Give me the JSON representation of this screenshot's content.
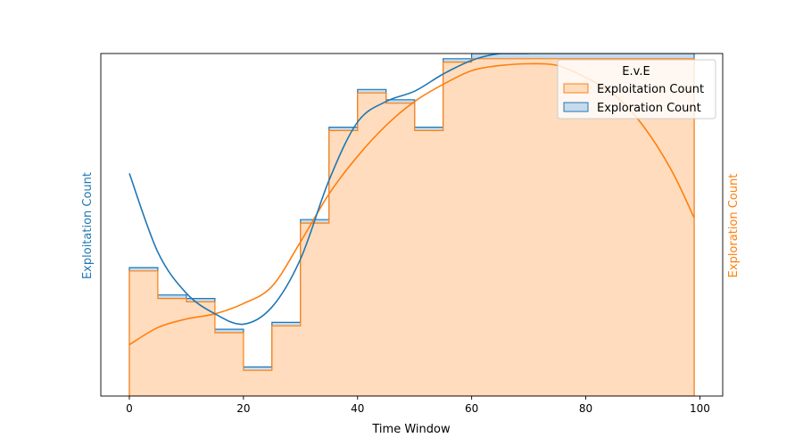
{
  "chart_data": {
    "type": "area",
    "xlabel": "Time Window",
    "ylabel_left": "Exploitation Count",
    "ylabel_right": "Exploration Count",
    "ylabel_left_color": "#1f77b4",
    "ylabel_right_color": "#ff7f0e",
    "xlim": [
      -5,
      104
    ],
    "ylim": [
      0,
      1.0
    ],
    "xticks": [
      0,
      20,
      40,
      60,
      80,
      100
    ],
    "y_ticks_hidden": true,
    "legend": {
      "title": "E.v.E",
      "position": "top-right",
      "entries": [
        "Exploitation Count",
        "Exploration Count"
      ]
    },
    "bin_edges": [
      0,
      5,
      10,
      15,
      20,
      25,
      30,
      35,
      40,
      45,
      50,
      55,
      60,
      65,
      70,
      75,
      80,
      85,
      90,
      95,
      99
    ],
    "series": [
      {
        "name": "Exploration Count",
        "color": "#1f77b4",
        "fill": "#c5dbed",
        "step_values": [
          0.375,
          0.295,
          0.285,
          0.195,
          0.085,
          0.215,
          0.515,
          0.785,
          0.895,
          0.865,
          0.785,
          0.985,
          1.0,
          1.0,
          1.0,
          1.0,
          1.0,
          1.0,
          1.0,
          1.0
        ],
        "kde_x": [
          0,
          5,
          10,
          15,
          20,
          25,
          30,
          35,
          40,
          45,
          50,
          55,
          60,
          65,
          70
        ],
        "kde_y": [
          0.65,
          0.42,
          0.3,
          0.24,
          0.21,
          0.26,
          0.4,
          0.63,
          0.8,
          0.86,
          0.89,
          0.94,
          0.98,
          1.0,
          1.0
        ]
      },
      {
        "name": "Exploitation Count",
        "color": "#ff7f0e",
        "fill": "#ffdcbd",
        "step_values": [
          0.365,
          0.285,
          0.275,
          0.185,
          0.075,
          0.205,
          0.505,
          0.775,
          0.885,
          0.855,
          0.775,
          0.975,
          0.985,
          0.985,
          0.985,
          0.985,
          0.985,
          0.985,
          0.985,
          0.985
        ],
        "kde_x": [
          0,
          5,
          10,
          15,
          20,
          25,
          30,
          35,
          40,
          45,
          50,
          55,
          60,
          65,
          70,
          75,
          80,
          85,
          90,
          95,
          99
        ],
        "kde_y": [
          0.15,
          0.2,
          0.225,
          0.24,
          0.27,
          0.32,
          0.45,
          0.59,
          0.7,
          0.79,
          0.86,
          0.91,
          0.95,
          0.965,
          0.97,
          0.965,
          0.93,
          0.88,
          0.79,
          0.66,
          0.52
        ]
      }
    ]
  }
}
